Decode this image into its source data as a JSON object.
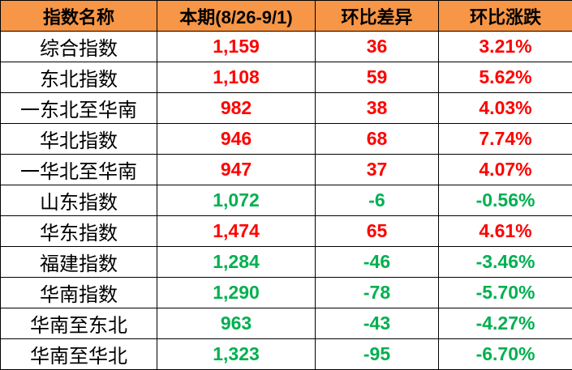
{
  "colors": {
    "header_bg": "#F79646",
    "up": "#FF0000",
    "down": "#00B050"
  },
  "chart_data": {
    "type": "table",
    "columns": [
      "指数名称",
      "本期(8/26-9/1)",
      "环比差异",
      "环比涨跌"
    ],
    "rows": [
      [
        "综合指数",
        "1,159",
        "36",
        "3.21%"
      ],
      [
        "东北指数",
        "1,108",
        "59",
        "5.62%"
      ],
      [
        "一东北至华南",
        "982",
        "38",
        "4.03%"
      ],
      [
        "华北指数",
        "946",
        "68",
        "7.74%"
      ],
      [
        "一华北至华南",
        "947",
        "37",
        "4.07%"
      ],
      [
        "山东指数",
        "1,072",
        "-6",
        "-0.56%"
      ],
      [
        "华东指数",
        "1,474",
        "65",
        "4.61%"
      ],
      [
        "福建指数",
        "1,284",
        "-46",
        "-3.46%"
      ],
      [
        "华南指数",
        "1,290",
        "-78",
        "-5.70%"
      ],
      [
        "华南至东北",
        "963",
        "-43",
        "-4.27%"
      ],
      [
        "华南至华北",
        "1,323",
        "-95",
        "-6.70%"
      ]
    ]
  }
}
